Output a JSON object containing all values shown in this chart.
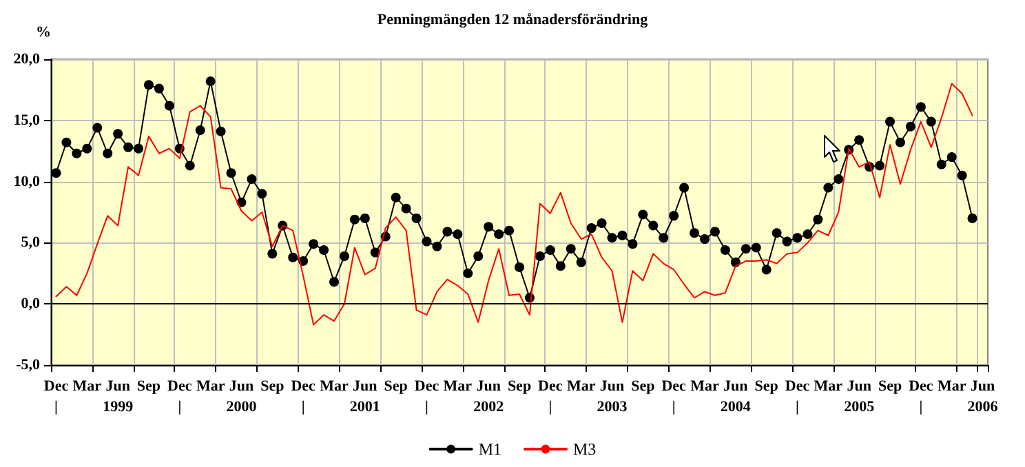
{
  "chart_data": {
    "type": "line",
    "title": "Penningmängden 12 månadersförändring",
    "ylabel": "%",
    "categories": [
      "Dec\n|",
      null,
      null,
      "Mar",
      null,
      null,
      "Jun\n1999",
      null,
      null,
      "Sep",
      null,
      null,
      "Dec\n|",
      null,
      null,
      "Mar",
      null,
      null,
      "Jun\n2000",
      null,
      null,
      "Sep",
      null,
      null,
      "Dec\n|",
      null,
      null,
      "Mar",
      null,
      null,
      "Jun\n2001",
      null,
      null,
      "Sep",
      null,
      null,
      "Dec\n|",
      null,
      null,
      "Mar",
      null,
      null,
      "Jun\n2002",
      null,
      null,
      "Sep",
      null,
      null,
      "Dec\n|",
      null,
      null,
      "Mar",
      null,
      null,
      "Jun\n2003",
      null,
      null,
      "Sep",
      null,
      null,
      "Dec\n|",
      null,
      null,
      "Mar",
      null,
      null,
      "Jun\n2004",
      null,
      null,
      "Sep",
      null,
      null,
      "Dec\n|",
      null,
      null,
      "Mar",
      null,
      null,
      "Jun\n2005",
      null,
      null,
      "Sep",
      null,
      null,
      "Dec\n|",
      null,
      null,
      "Mar",
      null,
      null,
      "Jun\n2006"
    ],
    "series": [
      {
        "name": "M1",
        "color": "#000000",
        "marker": "circle",
        "values": [
          10.7,
          13.2,
          12.3,
          12.7,
          14.4,
          12.3,
          13.9,
          12.8,
          12.7,
          17.9,
          17.6,
          16.2,
          12.7,
          11.3,
          14.2,
          18.2,
          14.1,
          10.7,
          8.3,
          10.2,
          9.0,
          4.1,
          6.4,
          3.8,
          3.5,
          4.9,
          4.4,
          1.8,
          3.9,
          6.9,
          7.0,
          4.2,
          5.5,
          8.7,
          7.8,
          7.0,
          5.1,
          4.7,
          5.9,
          5.7,
          2.5,
          3.9,
          6.3,
          5.7,
          6.0,
          3.0,
          0.5,
          3.9,
          4.4,
          3.1,
          4.5,
          3.4,
          6.2,
          6.6,
          5.4,
          5.6,
          4.9,
          7.3,
          6.4,
          5.4,
          7.2,
          9.5,
          5.8,
          5.3,
          5.9,
          4.4,
          3.4,
          4.5,
          4.6,
          2.8,
          5.8,
          5.1,
          5.4,
          5.7,
          6.9,
          9.5,
          10.2,
          12.6,
          13.4,
          11.2,
          11.3,
          14.9,
          13.2,
          14.5,
          16.1,
          14.9,
          11.4,
          12.0,
          10.5,
          7.0,
          null
        ]
      },
      {
        "name": "M3",
        "color": "#ff0000",
        "marker": "none",
        "values": [
          0.6,
          1.4,
          0.7,
          2.5,
          4.9,
          7.2,
          6.4,
          11.2,
          10.5,
          13.7,
          12.3,
          12.7,
          11.9,
          15.7,
          16.2,
          15.3,
          9.5,
          9.4,
          7.6,
          6.8,
          7.5,
          4.7,
          6.4,
          6.0,
          2.3,
          -1.7,
          -0.9,
          -1.4,
          0.0,
          4.6,
          2.4,
          2.9,
          6.2,
          7.1,
          6.0,
          -0.5,
          -0.9,
          1.0,
          2.0,
          1.5,
          0.8,
          -1.5,
          1.9,
          4.5,
          0.7,
          0.8,
          -0.9,
          8.2,
          7.4,
          9.1,
          6.6,
          5.3,
          5.7,
          3.8,
          2.7,
          -1.5,
          2.7,
          1.9,
          4.1,
          3.3,
          2.8,
          1.6,
          0.5,
          1.0,
          0.7,
          0.9,
          3.1,
          3.5,
          3.5,
          3.6,
          3.3,
          4.1,
          4.2,
          5.0,
          6.0,
          5.6,
          7.5,
          12.7,
          11.2,
          11.6,
          8.7,
          13.0,
          9.8,
          12.6,
          14.9,
          12.8,
          15.2,
          18.0,
          17.2,
          15.4,
          null
        ]
      }
    ],
    "ylim": [
      -5,
      20
    ],
    "yticks": [
      {
        "value": -5,
        "label": "-5,0"
      },
      {
        "value": 0,
        "label": "0,0"
      },
      {
        "value": 5,
        "label": "5,0"
      },
      {
        "value": 10,
        "label": "10,0"
      },
      {
        "value": 15,
        "label": "15,0"
      },
      {
        "value": 20,
        "label": "20,0"
      }
    ],
    "grid": true,
    "legend": "bottom",
    "ref_lines": [
      {
        "axis": "y",
        "value": 0,
        "color": "#000000"
      }
    ]
  }
}
